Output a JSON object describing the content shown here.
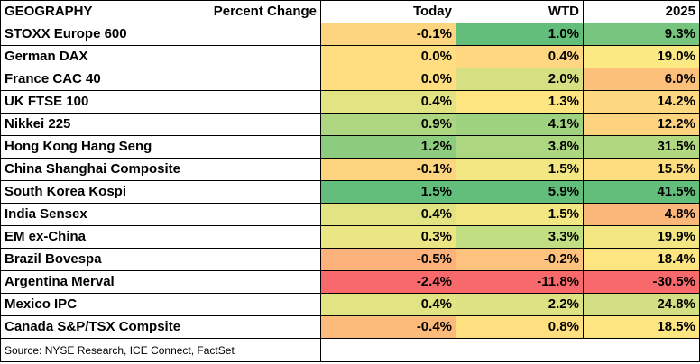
{
  "header": {
    "geography": "GEOGRAPHY",
    "metric": "Percent Change",
    "today": "Today",
    "wtd": "WTD",
    "ytd": "2025"
  },
  "rows": [
    {
      "name": "STOXX Europe 600",
      "today": "-0.1%",
      "wtd": "1.0%",
      "ytd": "9.3%",
      "today_color": "#fdd47f",
      "wtd_color": "#63be7b",
      "ytd_color": "#76c47d"
    },
    {
      "name": "German DAX",
      "today": "0.0%",
      "wtd": "0.4%",
      "ytd": "19.0%",
      "today_color": "#fede81",
      "wtd_color": "#fed780",
      "ytd_color": "#fbe983"
    },
    {
      "name": "France CAC 40",
      "today": "0.0%",
      "wtd": "2.0%",
      "ytd": "6.0%",
      "today_color": "#fede81",
      "wtd_color": "#d6e082",
      "ytd_color": "#fcc07b"
    },
    {
      "name": "UK FTSE 100",
      "today": "0.4%",
      "wtd": "1.3%",
      "ytd": "14.2%",
      "today_color": "#e2e383",
      "wtd_color": "#fde582",
      "ytd_color": "#fdd881"
    },
    {
      "name": "Nikkei 225",
      "today": "0.9%",
      "wtd": "4.1%",
      "ytd": "12.2%",
      "today_color": "#aed680",
      "wtd_color": "#9fd27e",
      "ytd_color": "#fdd380"
    },
    {
      "name": "Hong Kong Hang Seng",
      "today": "1.2%",
      "wtd": "3.8%",
      "ytd": "31.5%",
      "today_color": "#8dcb7e",
      "wtd_color": "#acd780",
      "ytd_color": "#b1d880"
    },
    {
      "name": "China Shanghai Composite",
      "today": "-0.1%",
      "wtd": "1.5%",
      "ytd": "15.5%",
      "today_color": "#fdd47f",
      "wtd_color": "#f2e783",
      "ytd_color": "#fedd81"
    },
    {
      "name": "South Korea Kospi",
      "today": "1.5%",
      "wtd": "5.9%",
      "ytd": "41.5%",
      "today_color": "#63be7b",
      "wtd_color": "#63be7b",
      "ytd_color": "#63be7b"
    },
    {
      "name": "India Sensex",
      "today": "0.4%",
      "wtd": "1.5%",
      "ytd": "4.8%",
      "today_color": "#e2e383",
      "wtd_color": "#f2e783",
      "ytd_color": "#fbb67a"
    },
    {
      "name": "EM ex-China",
      "today": "0.3%",
      "wtd": "3.3%",
      "ytd": "19.9%",
      "today_color": "#ece584",
      "wtd_color": "#c2de82",
      "ytd_color": "#f2e783"
    },
    {
      "name": "Brazil Bovespa",
      "today": "-0.5%",
      "wtd": "-0.2%",
      "ytd": "18.4%",
      "today_color": "#fcb27a",
      "wtd_color": "#fdc27d",
      "ytd_color": "#fde582"
    },
    {
      "name": "Argentina Merval",
      "today": "-2.4%",
      "wtd": "-11.8%",
      "ytd": "-30.5%",
      "today_color": "#f8696b",
      "wtd_color": "#f8696b",
      "ytd_color": "#f8696b"
    },
    {
      "name": "Mexico IPC",
      "today": "0.4%",
      "wtd": "2.2%",
      "ytd": "24.8%",
      "today_color": "#e2e383",
      "wtd_color": "#dfe283",
      "ytd_color": "#d2df82"
    },
    {
      "name": "Canada S&P/TSX Compsite",
      "today": "-0.4%",
      "wtd": "0.8%",
      "ytd": "18.5%",
      "today_color": "#fcba7b",
      "wtd_color": "#fee081",
      "ytd_color": "#fde582"
    }
  ],
  "source": "Source: NYSE Research, ICE Connect, FactSet"
}
